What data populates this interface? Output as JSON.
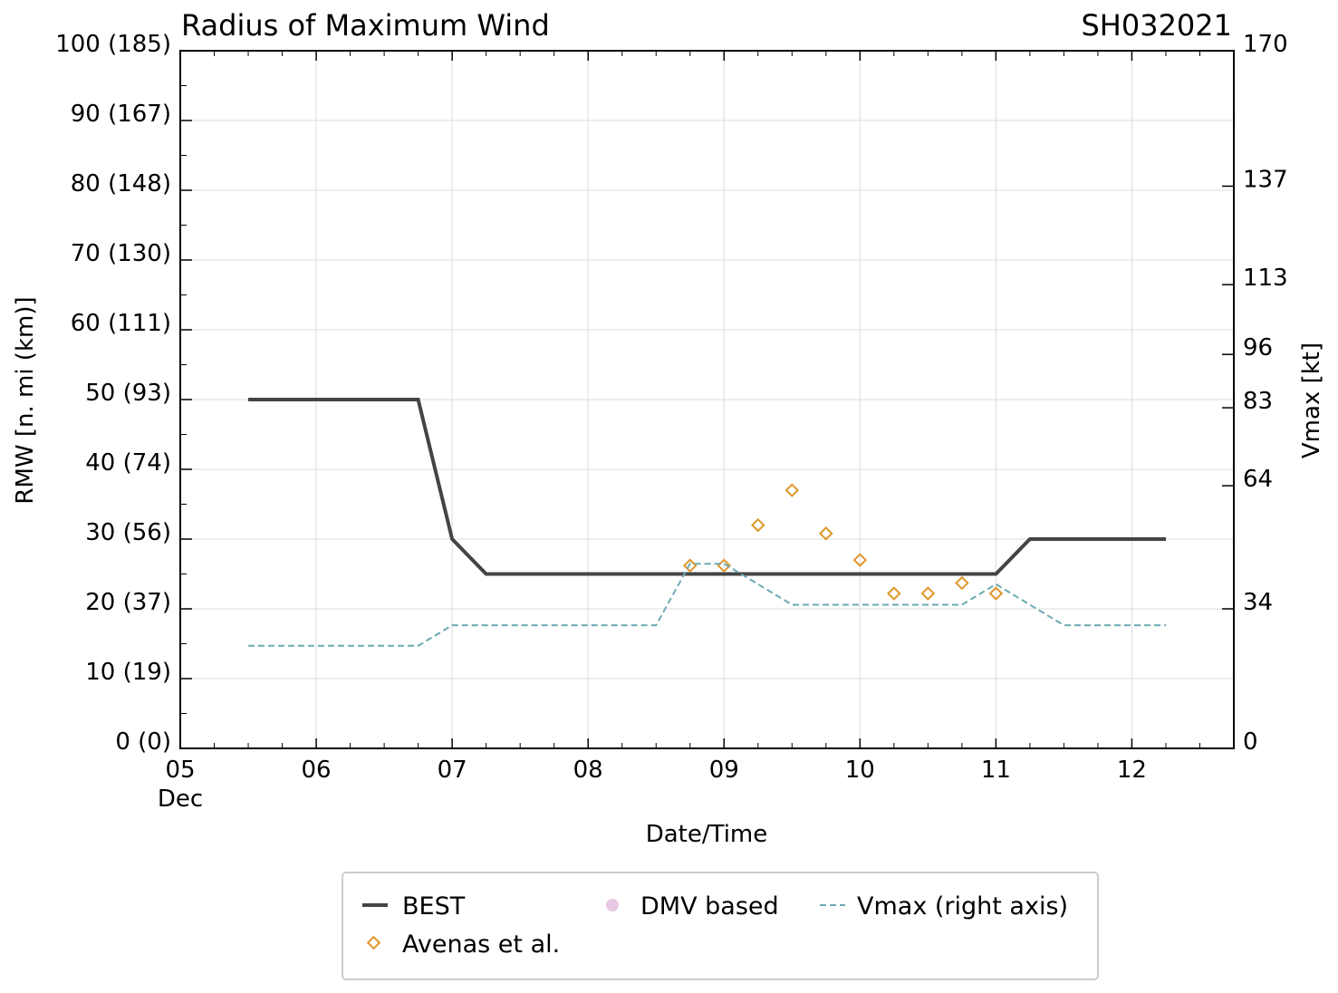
{
  "colors": {
    "best": "#444444",
    "avenas": "#e0962a",
    "dmv": "#e8c8e4",
    "vmax": "#6aabb2",
    "grid": "#dddddd",
    "axis": "#000000"
  },
  "chart_data": {
    "type": "line",
    "title": "Radius of Maximum Wind",
    "storm_id": "SH032021",
    "xlabel": "Date/Time",
    "ylabel": "RMW [n. mi (km)]",
    "y2label": "Vmax [kt]",
    "xlim": [
      5.0,
      12.75
    ],
    "ylim": [
      0,
      100
    ],
    "xticks": [
      {
        "value": 5,
        "label": "05"
      },
      {
        "value": 6,
        "label": "06"
      },
      {
        "value": 7,
        "label": "07"
      },
      {
        "value": 8,
        "label": "08"
      },
      {
        "value": 9,
        "label": "09"
      },
      {
        "value": 10,
        "label": "10"
      },
      {
        "value": 11,
        "label": "11"
      },
      {
        "value": 12,
        "label": "12"
      }
    ],
    "xsublabel": "Dec",
    "yticks": [
      {
        "value": 0,
        "label": "0 (0)"
      },
      {
        "value": 10,
        "label": "10 (19)"
      },
      {
        "value": 20,
        "label": "20 (37)"
      },
      {
        "value": 30,
        "label": "30 (56)"
      },
      {
        "value": 40,
        "label": "40 (74)"
      },
      {
        "value": 50,
        "label": "50 (93)"
      },
      {
        "value": 60,
        "label": "60 (111)"
      },
      {
        "value": 70,
        "label": "70 (130)"
      },
      {
        "value": 80,
        "label": "80 (148)"
      },
      {
        "value": 90,
        "label": "90 (167)"
      },
      {
        "value": 100,
        "label": "100 (185)"
      }
    ],
    "y2lim": [
      0,
      170
    ],
    "y2ticks": [
      {
        "value": 0,
        "label": "0"
      },
      {
        "value": 34,
        "label": "34"
      },
      {
        "value": 64,
        "label": "64"
      },
      {
        "value": 83,
        "label": "83"
      },
      {
        "value": 96,
        "label": "96"
      },
      {
        "value": 113,
        "label": "113"
      },
      {
        "value": 137,
        "label": "137"
      },
      {
        "value": 170,
        "label": "170"
      }
    ],
    "series": [
      {
        "name": "BEST",
        "kind": "line",
        "x": [
          5.5,
          5.75,
          6.0,
          6.25,
          6.5,
          6.75,
          7.0,
          7.25,
          7.5,
          7.75,
          8.0,
          8.25,
          8.5,
          8.75,
          9.0,
          9.25,
          9.5,
          9.75,
          10.0,
          10.25,
          10.5,
          10.75,
          11.0,
          11.25,
          11.5,
          11.75,
          12.0,
          12.25
        ],
        "y": [
          50,
          50,
          50,
          50,
          50,
          50,
          30,
          25,
          25,
          25,
          25,
          25,
          25,
          25,
          25,
          25,
          25,
          25,
          25,
          25,
          25,
          25,
          25,
          30,
          30,
          30,
          30,
          30
        ]
      },
      {
        "name": "Avenas et al.",
        "kind": "scatter",
        "x": [
          8.75,
          9.0,
          9.25,
          9.5,
          9.75,
          10.0,
          10.25,
          10.5,
          10.75,
          11.0
        ],
        "y": [
          26.2,
          26.2,
          32,
          37,
          30.8,
          27,
          22.2,
          22.2,
          23.7,
          22.2
        ]
      },
      {
        "name": "DMV based",
        "kind": "scatter",
        "x": [],
        "y": []
      },
      {
        "name": "Vmax (right axis)",
        "kind": "line",
        "axis": "right",
        "x": [
          5.5,
          5.75,
          6.0,
          6.25,
          6.5,
          6.75,
          7.0,
          7.25,
          7.5,
          7.75,
          8.0,
          8.25,
          8.5,
          8.75,
          9.0,
          9.25,
          9.5,
          9.75,
          10.0,
          10.25,
          10.5,
          10.75,
          11.0,
          11.25,
          11.5,
          11.75,
          12.0,
          12.25
        ],
        "y": [
          25,
          25,
          25,
          25,
          25,
          25,
          30,
          30,
          30,
          30,
          30,
          30,
          30,
          45,
          45,
          40,
          35,
          35,
          35,
          35,
          35,
          35,
          40,
          35,
          30,
          30,
          30,
          30
        ]
      }
    ],
    "legend": {
      "position": "bottom-center",
      "entries": [
        "BEST",
        "DMV based",
        "Vmax (right axis)",
        "Avenas et al."
      ]
    }
  }
}
